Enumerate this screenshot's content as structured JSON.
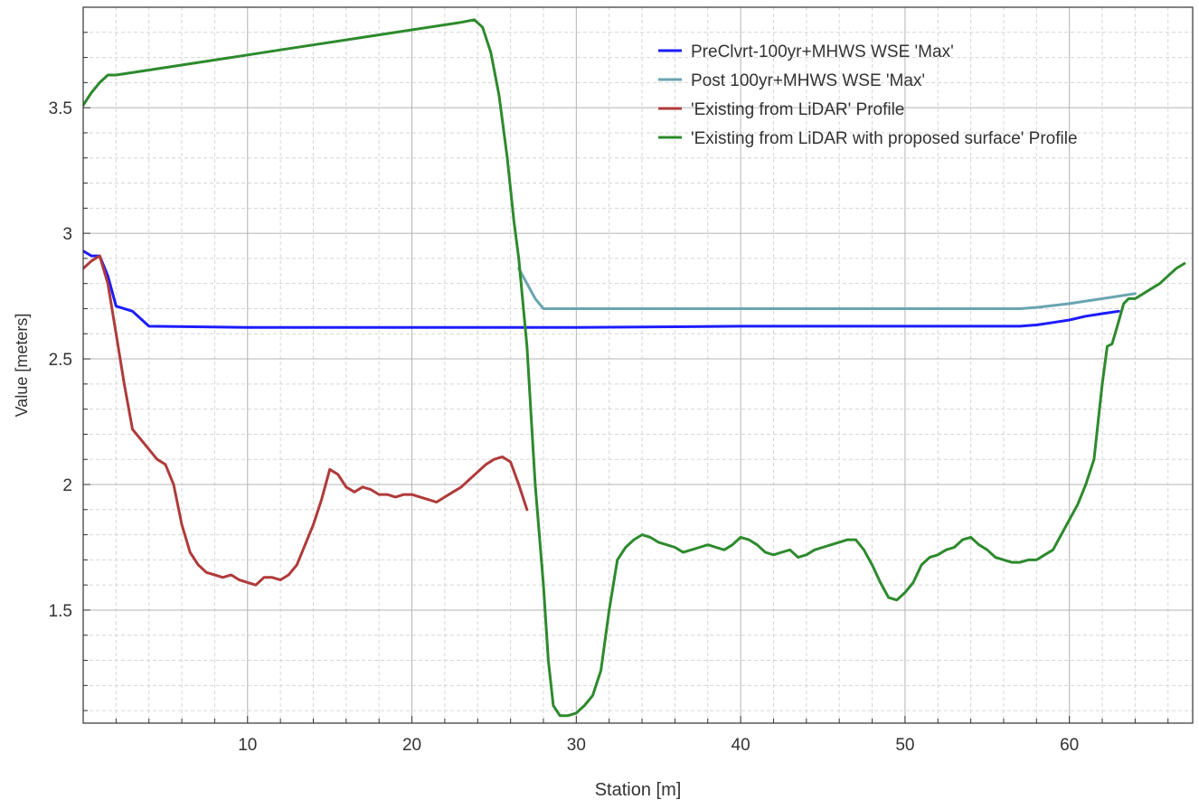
{
  "chart_data": {
    "type": "line",
    "xlabel": "Station [m]",
    "ylabel": "Value [meters]",
    "xlim": [
      0,
      67.5
    ],
    "ylim": [
      1.05,
      3.9
    ],
    "x_ticks": [
      10,
      20,
      30,
      40,
      50,
      60
    ],
    "y_ticks": [
      1.5,
      2,
      2.5,
      3,
      3.5
    ],
    "x_tick_labels": [
      "10",
      "20",
      "30",
      "40",
      "50",
      "60"
    ],
    "y_tick_labels": [
      "1.5",
      "2",
      "2.5",
      "3",
      "3.5"
    ],
    "grid": true,
    "legend_position": "top-right",
    "series": [
      {
        "name": "PreClvrt-100yr+MHWS WSE 'Max'",
        "color": "#1c1cff",
        "x": [
          0,
          0.5,
          1,
          1.5,
          2,
          3,
          4,
          10,
          20,
          30,
          40,
          50,
          57,
          58,
          59,
          60,
          61,
          62,
          63
        ],
        "y": [
          2.93,
          2.91,
          2.91,
          2.83,
          2.71,
          2.69,
          2.63,
          2.625,
          2.625,
          2.625,
          2.63,
          2.63,
          2.63,
          2.635,
          2.645,
          2.655,
          2.67,
          2.68,
          2.69
        ]
      },
      {
        "name": "Post 100yr+MHWS WSE 'Max'",
        "color": "#6aa5b0",
        "x": [
          26.5,
          27,
          27.5,
          28,
          30,
          40,
          50,
          57,
          58,
          60,
          62,
          63,
          64
        ],
        "y": [
          2.86,
          2.8,
          2.74,
          2.7,
          2.7,
          2.7,
          2.7,
          2.7,
          2.705,
          2.72,
          2.74,
          2.75,
          2.76
        ]
      },
      {
        "name": "'Existing from LiDAR' Profile",
        "color": "#b03a3a",
        "x": [
          0,
          0.5,
          1,
          1.5,
          2,
          2.5,
          3,
          3.5,
          4,
          4.5,
          5,
          5.5,
          6,
          6.5,
          7,
          7.5,
          8,
          8.5,
          9,
          9.5,
          10,
          10.5,
          11,
          11.5,
          12,
          12.5,
          13,
          13.5,
          14,
          14.5,
          15,
          15.5,
          16,
          16.5,
          17,
          17.5,
          18,
          18.5,
          19,
          19.5,
          20,
          20.5,
          21,
          21.5,
          22,
          22.5,
          23,
          23.5,
          24,
          24.5,
          25,
          25.5,
          26,
          26.5,
          27
        ],
        "y": [
          2.86,
          2.89,
          2.91,
          2.8,
          2.6,
          2.4,
          2.22,
          2.18,
          2.14,
          2.1,
          2.08,
          2.0,
          1.84,
          1.73,
          1.68,
          1.65,
          1.64,
          1.63,
          1.64,
          1.62,
          1.61,
          1.6,
          1.63,
          1.63,
          1.62,
          1.64,
          1.68,
          1.76,
          1.84,
          1.94,
          2.06,
          2.04,
          1.99,
          1.97,
          1.99,
          1.98,
          1.96,
          1.96,
          1.95,
          1.96,
          1.96,
          1.95,
          1.94,
          1.93,
          1.95,
          1.97,
          1.99,
          2.02,
          2.05,
          2.08,
          2.1,
          2.11,
          2.09,
          2.0,
          1.9
        ]
      },
      {
        "name": "'Existing from LiDAR with proposed surface' Profile",
        "color": "#2d8a2d",
        "x": [
          0,
          0.5,
          1,
          1.5,
          2,
          4,
          8,
          12,
          16,
          20,
          23,
          23.8,
          24.3,
          24.8,
          25.3,
          25.8,
          26.2,
          26.5,
          27,
          27.5,
          28,
          28.3,
          28.6,
          29,
          29.5,
          30,
          30.5,
          31,
          31.5,
          32,
          32.5,
          33,
          33.5,
          34,
          34.5,
          35,
          35.5,
          36,
          36.5,
          37,
          37.5,
          38,
          38.5,
          39,
          39.5,
          40,
          40.5,
          41,
          41.5,
          42,
          42.5,
          43,
          43.5,
          44,
          44.5,
          45,
          45.5,
          46,
          46.5,
          47,
          47.5,
          48,
          48.5,
          49,
          49.5,
          50,
          50.5,
          51,
          51.5,
          52,
          52.5,
          53,
          53.5,
          54,
          54.5,
          55,
          55.5,
          56,
          56.5,
          57,
          57.5,
          58,
          58.5,
          59,
          59.5,
          60,
          60.5,
          61,
          61.5,
          62,
          62.3,
          62.6,
          63,
          63.3,
          63.6,
          64,
          64.5,
          65,
          65.5,
          66,
          66.5,
          67
        ],
        "y": [
          3.51,
          3.56,
          3.6,
          3.63,
          3.63,
          3.65,
          3.69,
          3.73,
          3.77,
          3.81,
          3.84,
          3.85,
          3.82,
          3.72,
          3.55,
          3.3,
          3.05,
          2.9,
          2.55,
          2.0,
          1.6,
          1.3,
          1.12,
          1.08,
          1.08,
          1.09,
          1.12,
          1.16,
          1.26,
          1.5,
          1.7,
          1.75,
          1.78,
          1.8,
          1.79,
          1.77,
          1.76,
          1.75,
          1.73,
          1.74,
          1.75,
          1.76,
          1.75,
          1.74,
          1.76,
          1.79,
          1.78,
          1.76,
          1.73,
          1.72,
          1.73,
          1.74,
          1.71,
          1.72,
          1.74,
          1.75,
          1.76,
          1.77,
          1.78,
          1.78,
          1.74,
          1.68,
          1.61,
          1.55,
          1.54,
          1.57,
          1.61,
          1.68,
          1.71,
          1.72,
          1.74,
          1.75,
          1.78,
          1.79,
          1.76,
          1.74,
          1.71,
          1.7,
          1.69,
          1.69,
          1.7,
          1.7,
          1.72,
          1.74,
          1.8,
          1.86,
          1.92,
          2.0,
          2.1,
          2.4,
          2.55,
          2.56,
          2.65,
          2.72,
          2.74,
          2.74,
          2.76,
          2.78,
          2.8,
          2.83,
          2.86,
          2.88
        ]
      }
    ]
  }
}
